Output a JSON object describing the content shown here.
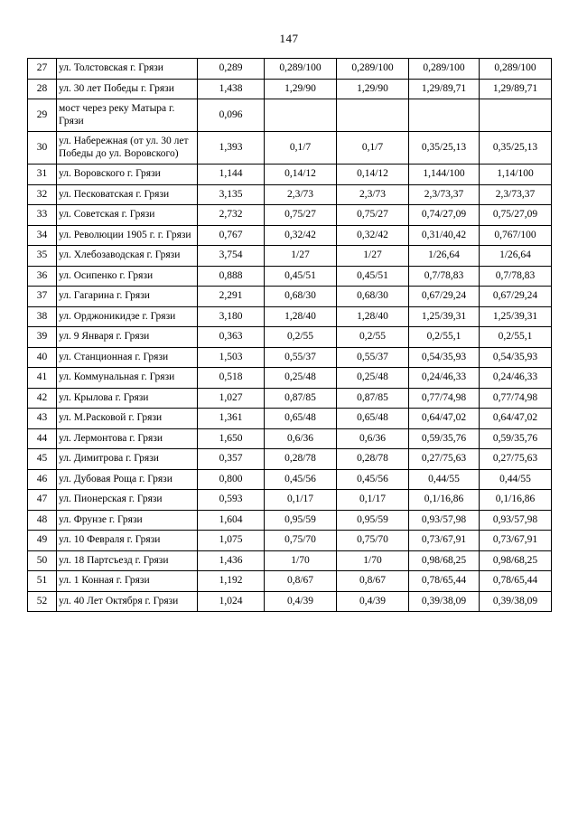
{
  "page_number": "147",
  "table": {
    "rows": [
      [
        "27",
        "ул. Толстовская г. Грязи",
        "0,289",
        "0,289/100",
        "0,289/100",
        "0,289/100",
        "0,289/100"
      ],
      [
        "28",
        "ул. 30 лет Победы г. Грязи",
        "1,438",
        "1,29/90",
        "1,29/90",
        "1,29/89,71",
        "1,29/89,71"
      ],
      [
        "29",
        "мост через реку Матыра г. Грязи",
        "0,096",
        "",
        "",
        "",
        ""
      ],
      [
        "30",
        "ул. Набережная (от ул. 30 лет Победы до ул. Воровского)",
        "1,393",
        "0,1/7",
        "0,1/7",
        "0,35/25,13",
        "0,35/25,13"
      ],
      [
        "31",
        "ул. Воровского г. Грязи",
        "1,144",
        "0,14/12",
        "0,14/12",
        "1,144/100",
        "1,14/100"
      ],
      [
        "32",
        "ул. Песковатская г. Грязи",
        "3,135",
        "2,3/73",
        "2,3/73",
        "2,3/73,37",
        "2,3/73,37"
      ],
      [
        "33",
        "ул. Советская г. Грязи",
        "2,732",
        "0,75/27",
        "0,75/27",
        "0,74/27,09",
        "0,75/27,09"
      ],
      [
        "34",
        "ул. Революции 1905 г. г. Грязи",
        "0,767",
        "0,32/42",
        "0,32/42",
        "0,31/40,42",
        "0,767/100"
      ],
      [
        "35",
        "ул. Хлебозаводская г. Грязи",
        "3,754",
        "1/27",
        "1/27",
        "1/26,64",
        "1/26,64"
      ],
      [
        "36",
        "ул. Осипенко г. Грязи",
        "0,888",
        "0,45/51",
        "0,45/51",
        "0,7/78,83",
        "0,7/78,83"
      ],
      [
        "37",
        "ул. Гагарина г. Грязи",
        "2,291",
        "0,68/30",
        "0,68/30",
        "0,67/29,24",
        "0,67/29,24"
      ],
      [
        "38",
        "ул. Орджоникидзе г. Грязи",
        "3,180",
        "1,28/40",
        "1,28/40",
        "1,25/39,31",
        "1,25/39,31"
      ],
      [
        "39",
        "ул. 9 Января г. Грязи",
        "0,363",
        "0,2/55",
        "0,2/55",
        "0,2/55,1",
        "0,2/55,1"
      ],
      [
        "40",
        "ул. Станционная г. Грязи",
        "1,503",
        "0,55/37",
        "0,55/37",
        "0,54/35,93",
        "0,54/35,93"
      ],
      [
        "41",
        "ул. Коммунальная г. Грязи",
        "0,518",
        "0,25/48",
        "0,25/48",
        "0,24/46,33",
        "0,24/46,33"
      ],
      [
        "42",
        "ул. Крылова г. Грязи",
        "1,027",
        "0,87/85",
        "0,87/85",
        "0,77/74,98",
        "0,77/74,98"
      ],
      [
        "43",
        "ул. М.Расковой г. Грязи",
        "1,361",
        "0,65/48",
        "0,65/48",
        "0,64/47,02",
        "0,64/47,02"
      ],
      [
        "44",
        "ул. Лермонтова г. Грязи",
        "1,650",
        "0,6/36",
        "0,6/36",
        "0,59/35,76",
        "0,59/35,76"
      ],
      [
        "45",
        "ул. Димитрова г. Грязи",
        "0,357",
        "0,28/78",
        "0,28/78",
        "0,27/75,63",
        "0,27/75,63"
      ],
      [
        "46",
        "ул. Дубовая Роща г. Грязи",
        "0,800",
        "0,45/56",
        "0,45/56",
        "0,44/55",
        "0,44/55"
      ],
      [
        "47",
        "ул. Пионерская г. Грязи",
        "0,593",
        "0,1/17",
        "0,1/17",
        "0,1/16,86",
        "0,1/16,86"
      ],
      [
        "48",
        "ул. Фрунзе г. Грязи",
        "1,604",
        "0,95/59",
        "0,95/59",
        "0,93/57,98",
        "0,93/57,98"
      ],
      [
        "49",
        "ул. 10 Февраля г. Грязи",
        "1,075",
        "0,75/70",
        "0,75/70",
        "0,73/67,91",
        "0,73/67,91"
      ],
      [
        "50",
        "ул. 18 Партсъезд г. Грязи",
        "1,436",
        "1/70",
        "1/70",
        "0,98/68,25",
        "0,98/68,25"
      ],
      [
        "51",
        "ул. 1 Конная г. Грязи",
        "1,192",
        "0,8/67",
        "0,8/67",
        "0,78/65,44",
        "0,78/65,44"
      ],
      [
        "52",
        "ул. 40 Лет Октября г. Грязи",
        "1,024",
        "0,4/39",
        "0,4/39",
        "0,39/38,09",
        "0,39/38,09"
      ]
    ]
  }
}
